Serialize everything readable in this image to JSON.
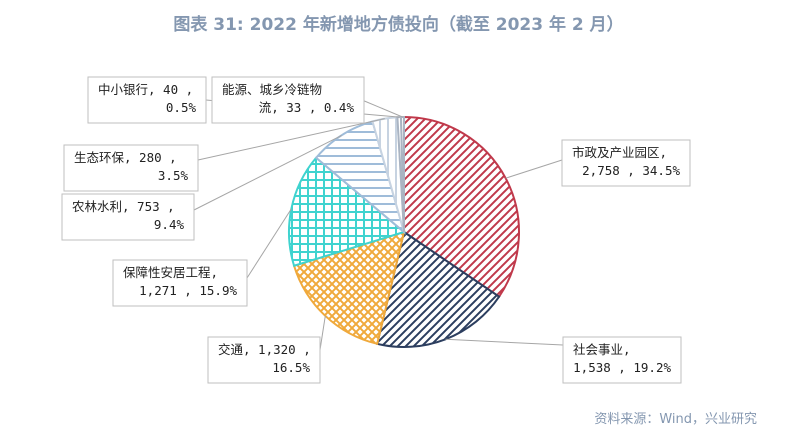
{
  "title": "图表 31: 2022 年新增地方债投向（截至 2023 年 2 月）",
  "source": "资料来源：Wind，兴业研究",
  "chart_data": {
    "type": "pie",
    "title": "图表 31: 2022 年新增地方债投向（截至 2023 年 2 月）",
    "start_angle_deg": 0,
    "direction": "clockwise",
    "slices": [
      {
        "label": "市政及产业园区",
        "value": 2758,
        "percent": 34.5,
        "text_lines": [
          "市政及产业园区,",
          "2,758 , 34.5%"
        ],
        "color": "#c0394b",
        "pattern": "diag"
      },
      {
        "label": "社会事业",
        "value": 1538,
        "percent": 19.2,
        "text_lines": [
          "社会事业,",
          "1,538 , 19.2%"
        ],
        "color": "#2c3e5f",
        "pattern": "diag"
      },
      {
        "label": "交通",
        "value": 1320,
        "percent": 16.5,
        "text_lines": [
          "交通, 1,320 ,",
          "16.5%"
        ],
        "color": "#f0a93b",
        "pattern": "cross"
      },
      {
        "label": "保障性安居工程",
        "value": 1271,
        "percent": 15.9,
        "text_lines": [
          "保障性安居工程,",
          "1,271 , 15.9%"
        ],
        "color": "#3fd3cf",
        "pattern": "grid"
      },
      {
        "label": "农林水利",
        "value": 753,
        "percent": 9.4,
        "text_lines": [
          "农林水利, 753 ,",
          "9.4%"
        ],
        "color": "#9fbcd9",
        "pattern": "horiz"
      },
      {
        "label": "生态环保",
        "value": 280,
        "percent": 3.5,
        "text_lines": [
          "生态环保, 280 ,",
          "3.5%"
        ],
        "color": "#c7d3e1",
        "pattern": "vert"
      },
      {
        "label": "中小银行",
        "value": 40,
        "percent": 0.5,
        "text_lines": [
          "中小银行, 40 ,",
          "0.5%"
        ],
        "color": "#aab4c2",
        "pattern": "vert"
      },
      {
        "label": "能源、城乡冷链物流",
        "value": 33,
        "percent": 0.4,
        "text_lines": [
          "能源、城乡冷链物",
          "流, 33 , 0.4%"
        ],
        "color": "#aab4c2",
        "pattern": "vert"
      }
    ]
  }
}
